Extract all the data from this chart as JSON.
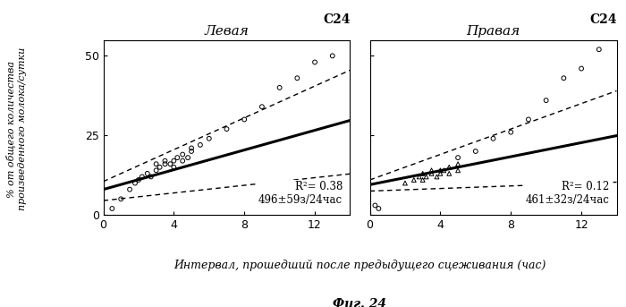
{
  "left_scatter": [
    [
      0.5,
      2
    ],
    [
      1.0,
      5
    ],
    [
      1.5,
      8
    ],
    [
      1.8,
      10
    ],
    [
      2.0,
      11
    ],
    [
      2.2,
      12
    ],
    [
      2.5,
      13
    ],
    [
      2.7,
      12
    ],
    [
      3.0,
      14
    ],
    [
      3.0,
      16
    ],
    [
      3.2,
      15
    ],
    [
      3.5,
      16
    ],
    [
      3.5,
      17
    ],
    [
      3.8,
      16
    ],
    [
      4.0,
      17
    ],
    [
      4.0,
      15
    ],
    [
      4.2,
      18
    ],
    [
      4.5,
      19
    ],
    [
      4.5,
      17
    ],
    [
      4.8,
      18
    ],
    [
      5.0,
      20
    ],
    [
      5.0,
      21
    ],
    [
      5.5,
      22
    ],
    [
      6.0,
      24
    ],
    [
      7.0,
      27
    ],
    [
      8.0,
      30
    ],
    [
      9.0,
      34
    ],
    [
      10.0,
      40
    ],
    [
      11.0,
      43
    ],
    [
      12.0,
      48
    ],
    [
      13.0,
      50
    ]
  ],
  "right_scatter_circles": [
    [
      0.3,
      3
    ],
    [
      0.5,
      2
    ],
    [
      5.0,
      18
    ],
    [
      6.0,
      20
    ],
    [
      7.0,
      24
    ],
    [
      8.0,
      26
    ],
    [
      9.0,
      30
    ],
    [
      10.0,
      36
    ],
    [
      11.0,
      43
    ],
    [
      12.0,
      46
    ],
    [
      13.0,
      52
    ]
  ],
  "right_scatter_triangles": [
    [
      2.0,
      10
    ],
    [
      2.5,
      11
    ],
    [
      2.8,
      12
    ],
    [
      3.0,
      11
    ],
    [
      3.0,
      13
    ],
    [
      3.2,
      12
    ],
    [
      3.5,
      13
    ],
    [
      3.5,
      14
    ],
    [
      3.8,
      12
    ],
    [
      4.0,
      14
    ],
    [
      4.0,
      13
    ],
    [
      4.2,
      14
    ],
    [
      4.5,
      15
    ],
    [
      4.5,
      13
    ],
    [
      5.0,
      16
    ],
    [
      5.0,
      14
    ]
  ],
  "left_regression": {
    "slope": 1.55,
    "intercept": 8.0
  },
  "right_regression": {
    "slope": 1.1,
    "intercept": 9.5
  },
  "left_ci_upper": {
    "slope": 2.5,
    "intercept": 10.5
  },
  "left_ci_lower": {
    "slope": 0.6,
    "intercept": 4.5
  },
  "right_ci_upper": {
    "slope": 2.0,
    "intercept": 11.0
  },
  "right_ci_lower": {
    "slope": 0.2,
    "intercept": 7.5
  },
  "left_title": "Левая",
  "right_title": "Правая",
  "left_label": "C24",
  "right_label": "C24",
  "left_annotation": "R²= 0.38\n496±59з/24час",
  "right_annotation": "R²= 0.12\n461±32з/24час",
  "xlabel": "Интервал, прошедший после предыдущего сцеживания (час)",
  "ylabel_line1": "% от общего количества",
  "ylabel_line2": "произведенного молока/сутки",
  "fig_caption": "Фиг. 24",
  "xlim": [
    0,
    14
  ],
  "ylim": [
    0,
    55
  ],
  "xticks": [
    0,
    4,
    8,
    12
  ],
  "yticks": [
    0,
    25,
    50
  ]
}
